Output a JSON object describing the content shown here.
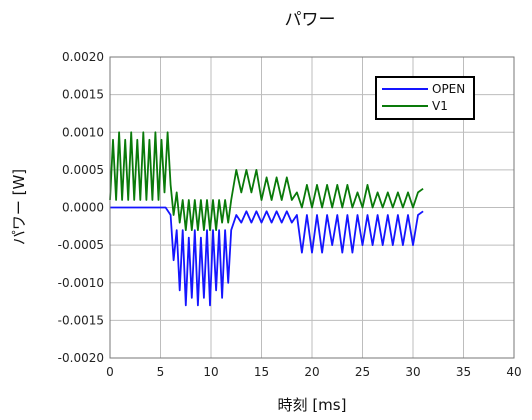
{
  "chart_data": {
    "type": "line",
    "title": "パワー",
    "xlabel": "時刻 [ms]",
    "ylabel": "パワー [W]",
    "xlim": [
      0,
      40
    ],
    "ylim": [
      -0.002,
      0.002
    ],
    "x_ticks": [
      "0",
      "5",
      "10",
      "15",
      "20",
      "25",
      "30",
      "35",
      "40"
    ],
    "y_ticks": [
      "0.0020",
      "0.0015",
      "0.0010",
      "0.0005",
      "0.0000",
      "-0.0005",
      "-0.0010",
      "-0.0015",
      "-0.0020"
    ],
    "grid": true,
    "legend_position": "top-right",
    "series": [
      {
        "name": "OPEN",
        "color": "#1515ff",
        "x": [
          0,
          5.5,
          6.0,
          6.3,
          6.6,
          6.9,
          7.2,
          7.5,
          7.8,
          8.1,
          8.4,
          8.7,
          9.0,
          9.3,
          9.6,
          9.9,
          10.2,
          10.5,
          10.8,
          11.1,
          11.4,
          11.7,
          12.0,
          12.5,
          13.0,
          13.5,
          14.0,
          14.5,
          15.0,
          15.5,
          16.0,
          16.5,
          17.0,
          17.5,
          18.0,
          18.5,
          19.0,
          19.5,
          20.0,
          20.5,
          21.0,
          21.5,
          22.0,
          22.5,
          23.0,
          23.5,
          24.0,
          24.5,
          25.0,
          25.5,
          26.0,
          26.5,
          27.0,
          27.5,
          28.0,
          28.5,
          29.0,
          29.5,
          30.0,
          30.5,
          31.0
        ],
        "y": [
          0,
          0,
          -0.0001,
          -0.0007,
          -0.0003,
          -0.0011,
          -0.0003,
          -0.0013,
          -0.0004,
          -0.0012,
          -0.0003,
          -0.0013,
          -0.0004,
          -0.0012,
          -0.0003,
          -0.0013,
          -0.0003,
          -0.0011,
          -0.0003,
          -0.0012,
          -0.0003,
          -0.001,
          -0.0003,
          -0.0001,
          -0.0002,
          -5e-05,
          -0.0002,
          -5e-05,
          -0.0002,
          -5e-05,
          -0.0002,
          -5e-05,
          -0.0002,
          -5e-05,
          -0.0002,
          -0.0001,
          -0.0006,
          -0.0001,
          -0.0006,
          -0.0001,
          -0.0006,
          -0.0001,
          -0.0005,
          -0.0001,
          -0.0006,
          -0.0001,
          -0.0006,
          -0.0001,
          -0.0005,
          -0.0001,
          -0.0005,
          -0.0001,
          -0.0005,
          -0.0001,
          -0.0005,
          -0.0001,
          -0.0005,
          -0.0001,
          -0.0005,
          -0.0001,
          -5e-05
        ]
      },
      {
        "name": "V1",
        "color": "#0a7a0a",
        "x": [
          0,
          0.3,
          0.6,
          0.9,
          1.2,
          1.5,
          1.8,
          2.1,
          2.4,
          2.7,
          3.0,
          3.3,
          3.6,
          3.9,
          4.2,
          4.5,
          4.8,
          5.1,
          5.4,
          5.7,
          6.0,
          6.3,
          6.6,
          6.9,
          7.2,
          7.5,
          7.8,
          8.1,
          8.4,
          8.7,
          9.0,
          9.3,
          9.6,
          9.9,
          10.2,
          10.5,
          10.8,
          11.1,
          11.4,
          11.7,
          12.0,
          12.5,
          13.0,
          13.5,
          14.0,
          14.5,
          15.0,
          15.5,
          16.0,
          16.5,
          17.0,
          17.5,
          18.0,
          18.5,
          19.0,
          19.5,
          20.0,
          20.5,
          21.0,
          21.5,
          22.0,
          22.5,
          23.0,
          23.5,
          24.0,
          24.5,
          25.0,
          25.5,
          26.0,
          26.5,
          27.0,
          27.5,
          28.0,
          28.5,
          29.0,
          29.5,
          30.0,
          30.5,
          31.0
        ],
        "y": [
          0.0001,
          0.0009,
          0.0001,
          0.001,
          0.0001,
          0.0009,
          0.0001,
          0.001,
          0.0001,
          0.0009,
          0.0001,
          0.001,
          0.0001,
          0.0009,
          0.0001,
          0.001,
          0.0001,
          0.0009,
          0.0002,
          0.001,
          0.0003,
          -0.0001,
          0.0002,
          -0.0002,
          0.0001,
          -0.0003,
          0.0001,
          -0.0003,
          0.0001,
          -0.0003,
          0.0001,
          -0.0003,
          0.0001,
          -0.0003,
          0.0001,
          -0.0003,
          0.0001,
          -0.0002,
          0.0001,
          -0.0002,
          0.0001,
          0.0005,
          0.0002,
          0.0005,
          0.0002,
          0.0005,
          0.0001,
          0.0004,
          0.0001,
          0.0004,
          0.0001,
          0.0004,
          0.0001,
          0.0002,
          0.0,
          0.0003,
          0.0,
          0.0003,
          0.0,
          0.0003,
          0.0,
          0.0003,
          0.0,
          0.0003,
          0.0,
          0.0002,
          0.0,
          0.0003,
          0.0,
          0.0002,
          0.0,
          0.0002,
          0.0,
          0.0002,
          0.0,
          0.0002,
          0.0,
          0.0002,
          0.00025
        ]
      }
    ]
  }
}
